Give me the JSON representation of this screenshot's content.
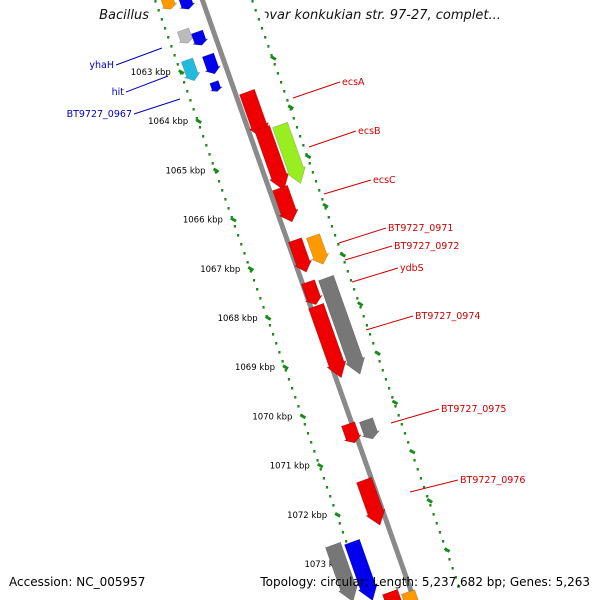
{
  "title": "Bacillus thuringiensis serovar konkukian str. 97-27, complet...",
  "footer": {
    "accession": "Accession: NC_005957",
    "topology": "Topology: circular; Length: 5,237,682 bp; Genes: 5,263"
  },
  "colors": {
    "backbone": "#8a8a8a",
    "tick_green": "#1a8a1a",
    "label_red": "#cc0000",
    "label_blue": "#0000bb",
    "gene_red": "#ee0000",
    "gene_green": "#99ee22",
    "gene_orange": "#ff9900",
    "gene_gray": "#777777",
    "gene_blue": "#0000ee",
    "gene_cyan": "#22bbdd",
    "gene_lightgray": "#bbbbbb"
  },
  "kbp_labels": [
    "1063 kbp",
    "1064 kbp",
    "1065 kbp",
    "1066 kbp",
    "1067 kbp",
    "1068 kbp",
    "1069 kbp",
    "1070 kbp",
    "1071 kbp",
    "1072 kbp",
    "1073 kbp"
  ],
  "right_labels": [
    "ecsA",
    "ecsB",
    "ecsC",
    "BT9727_0971",
    "BT9727_0972",
    "ydbS",
    "BT9727_0974",
    "BT9727_0975",
    "BT9727_0976"
  ],
  "left_labels": [
    "yhaH",
    "hit",
    "BT9727_0967"
  ]
}
